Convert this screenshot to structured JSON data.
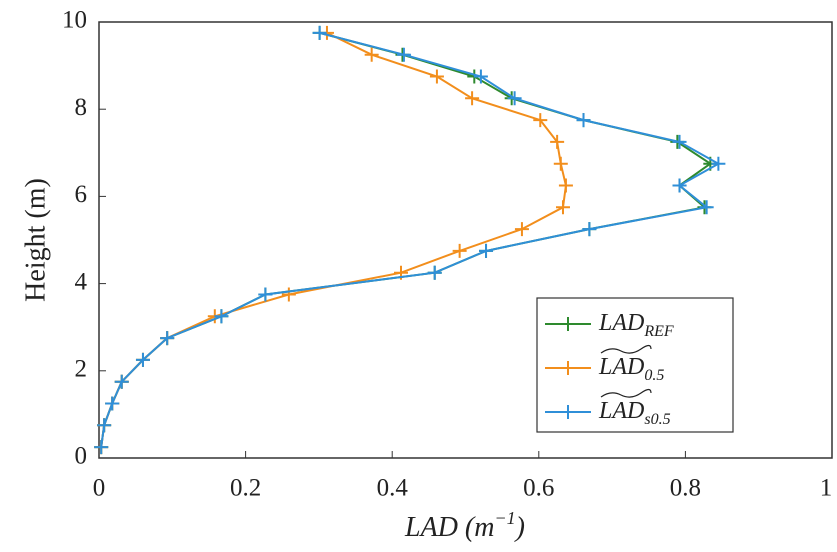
{
  "chart_data": {
    "type": "line",
    "xlabel": {
      "text": "LAD (m",
      "sup": "−1",
      "tail": ")"
    },
    "ylabel": "Height (m)",
    "y": [
      0.25,
      0.75,
      1.25,
      1.75,
      2.25,
      2.75,
      3.25,
      3.75,
      4.25,
      4.75,
      5.25,
      5.75,
      6.25,
      6.75,
      7.25,
      7.75,
      8.25,
      8.75,
      9.25,
      9.75
    ],
    "series": [
      {
        "name": "LAD",
        "subscript": "REF",
        "tilde": false,
        "color": "#2e8a2e",
        "values": [
          0.003,
          0.007,
          0.018,
          0.031,
          0.06,
          0.093,
          0.167,
          0.227,
          0.458,
          0.528,
          0.669,
          0.826,
          0.792,
          0.834,
          0.789,
          0.661,
          0.563,
          0.512,
          0.414,
          0.301
        ]
      },
      {
        "name": "LAD",
        "subscript": "0.5",
        "tilde": true,
        "color": "#f28e1c",
        "values": [
          0.003,
          0.007,
          0.018,
          0.031,
          0.06,
          0.093,
          0.158,
          0.259,
          0.412,
          0.492,
          0.577,
          0.633,
          0.637,
          0.63,
          0.625,
          0.602,
          0.509,
          0.461,
          0.372,
          0.311
        ]
      },
      {
        "name": "LAD",
        "subscript": "s0.5",
        "tilde": true,
        "color": "#2f8fd8",
        "values": [
          0.003,
          0.007,
          0.018,
          0.031,
          0.06,
          0.093,
          0.167,
          0.227,
          0.458,
          0.528,
          0.669,
          0.829,
          0.792,
          0.845,
          0.792,
          0.661,
          0.567,
          0.521,
          0.416,
          0.301
        ]
      }
    ],
    "xlim": [
      0,
      1
    ],
    "xticks": [
      0,
      0.2,
      0.4,
      0.6,
      0.8,
      1
    ],
    "ylim": [
      0,
      10
    ],
    "yticks": [
      0,
      2,
      4,
      6,
      8,
      10
    ],
    "legend": "lower right"
  }
}
